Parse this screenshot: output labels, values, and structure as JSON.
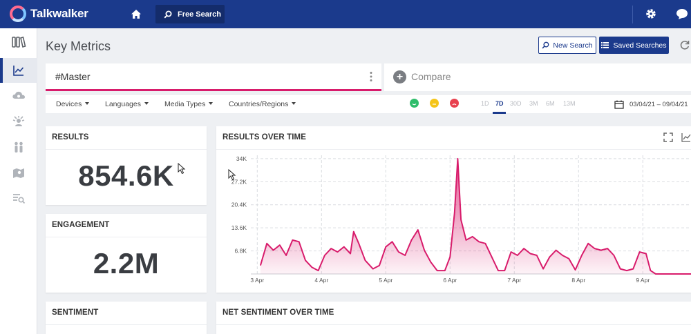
{
  "app": {
    "name": "Talkwalker"
  },
  "topbar": {
    "free_search_label": "Free Search"
  },
  "page": {
    "title": "Key Metrics"
  },
  "actions": {
    "new_search_label": "New Search",
    "saved_searches_label": "Saved Searches"
  },
  "query_tabs": {
    "master_label": "#Master",
    "compare_label": "Compare"
  },
  "filters": {
    "items": [
      "Devices",
      "Languages",
      "Media Types",
      "Countries/Regions"
    ],
    "periods": [
      "1D",
      "7D",
      "30D",
      "3M",
      "6M",
      "13M"
    ],
    "active_period": "7D",
    "date_range": "03/04/21 – 09/04/21"
  },
  "sentiment_colors": {
    "positive": "#2ebd6b",
    "neutral": "#f5c518",
    "negative": "#e8414f"
  },
  "colors": {
    "brand": "#1b3a8c",
    "accent": "#d81b6b"
  },
  "cards": {
    "results": {
      "title": "RESULTS",
      "value": "854.6K"
    },
    "engagement": {
      "title": "ENGAGEMENT",
      "value": "2.2M"
    },
    "sentiment": {
      "title": "SENTIMENT"
    },
    "results_over_time": {
      "title": "RESULTS OVER TIME"
    },
    "net_sentiment": {
      "title": "NET SENTIMENT OVER TIME"
    }
  },
  "chart_data": {
    "type": "area",
    "title": "RESULTS OVER TIME",
    "xlabel": "",
    "ylabel": "",
    "y_ticks": [
      "34K",
      "27.2K",
      "20.4K",
      "13.6K",
      "6.8K"
    ],
    "y_tick_values": [
      34000,
      27200,
      20400,
      13600,
      6800
    ],
    "x_ticks": [
      "3 Apr",
      "4 Apr",
      "5 Apr",
      "6 Apr",
      "7 Apr",
      "8 Apr",
      "9 Apr"
    ],
    "x_tick_positions_days": [
      0,
      1,
      2,
      3,
      4,
      5,
      6
    ],
    "ylim": [
      0,
      35000
    ],
    "xlim_days": [
      -0.1,
      6.75
    ],
    "grid": true,
    "series": [
      {
        "color": "#d81b6b",
        "points": [
          [
            0.05,
            2500
          ],
          [
            0.15,
            9000
          ],
          [
            0.25,
            7000
          ],
          [
            0.35,
            8500
          ],
          [
            0.45,
            5500
          ],
          [
            0.55,
            10000
          ],
          [
            0.65,
            9500
          ],
          [
            0.75,
            4000
          ],
          [
            0.85,
            2000
          ],
          [
            0.95,
            1000
          ],
          [
            1.05,
            5500
          ],
          [
            1.15,
            7500
          ],
          [
            1.25,
            6500
          ],
          [
            1.35,
            8000
          ],
          [
            1.45,
            6000
          ],
          [
            1.5,
            12500
          ],
          [
            1.58,
            9000
          ],
          [
            1.68,
            4000
          ],
          [
            1.8,
            1500
          ],
          [
            1.9,
            2500
          ],
          [
            2.0,
            8000
          ],
          [
            2.1,
            9500
          ],
          [
            2.2,
            6500
          ],
          [
            2.3,
            5500
          ],
          [
            2.4,
            10000
          ],
          [
            2.5,
            13000
          ],
          [
            2.6,
            7000
          ],
          [
            2.7,
            3500
          ],
          [
            2.8,
            1000
          ],
          [
            2.92,
            1000
          ],
          [
            3.0,
            5000
          ],
          [
            3.07,
            18000
          ],
          [
            3.12,
            34000
          ],
          [
            3.17,
            16000
          ],
          [
            3.25,
            10000
          ],
          [
            3.35,
            11000
          ],
          [
            3.45,
            9500
          ],
          [
            3.55,
            9000
          ],
          [
            3.65,
            5000
          ],
          [
            3.75,
            1000
          ],
          [
            3.85,
            1000
          ],
          [
            3.95,
            6500
          ],
          [
            4.05,
            5500
          ],
          [
            4.15,
            7500
          ],
          [
            4.25,
            6000
          ],
          [
            4.35,
            5500
          ],
          [
            4.45,
            1500
          ],
          [
            4.55,
            5000
          ],
          [
            4.65,
            7000
          ],
          [
            4.75,
            5500
          ],
          [
            4.85,
            4500
          ],
          [
            4.95,
            1200
          ],
          [
            5.05,
            5500
          ],
          [
            5.15,
            9000
          ],
          [
            5.25,
            7500
          ],
          [
            5.35,
            7000
          ],
          [
            5.45,
            7500
          ],
          [
            5.55,
            5500
          ],
          [
            5.65,
            1500
          ],
          [
            5.75,
            1000
          ],
          [
            5.85,
            1500
          ],
          [
            5.95,
            6500
          ],
          [
            6.05,
            6000
          ],
          [
            6.12,
            1000
          ],
          [
            6.2,
            0
          ],
          [
            6.75,
            0
          ]
        ]
      }
    ]
  }
}
